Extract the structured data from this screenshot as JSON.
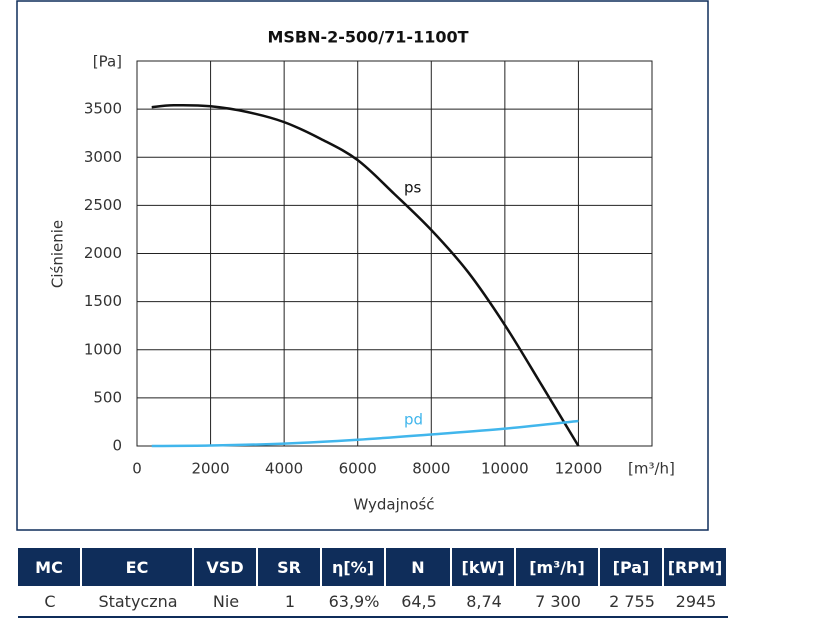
{
  "chart_data": {
    "type": "line",
    "title": "MSBN-2-500/71-1100T",
    "y_label": "Ciśnienie",
    "x_label": "Wydajność",
    "y_unit": "[Pa]",
    "x_unit": "[m³/h]",
    "xlim": [
      0,
      14000
    ],
    "xticks": [
      0,
      2000,
      4000,
      6000,
      8000,
      10000,
      12000
    ],
    "ylim": [
      0,
      4000
    ],
    "yticks": [
      0,
      500,
      1000,
      1500,
      2000,
      2500,
      3000,
      3500
    ],
    "grid": true,
    "series": [
      {
        "name": "ps",
        "color": "#111111",
        "x": [
          400,
          1000,
          2000,
          3000,
          4000,
          5000,
          6000,
          7000,
          8000,
          9000,
          10000,
          11000,
          12000
        ],
        "values": [
          3520,
          3540,
          3530,
          3470,
          3365,
          3190,
          2970,
          2617,
          2244,
          1807,
          1257,
          633,
          0
        ]
      },
      {
        "name": "pd",
        "color": "#41b6ec",
        "x": [
          400,
          2000,
          4000,
          6000,
          8000,
          10000,
          12000
        ],
        "values": [
          0,
          5,
          25,
          65,
          120,
          180,
          260
        ]
      }
    ]
  },
  "table": {
    "header": [
      "MC",
      "EC",
      "VSD",
      "SR",
      "η[%]",
      "N",
      "[kW]",
      "[m³/h]",
      "[Pa]",
      "[RPM]"
    ],
    "rows": [
      [
        "C",
        "Statyczna",
        "Nie",
        "1",
        "63,9%",
        "64,5",
        "8,74",
        "7 300",
        "2 755",
        "2945"
      ]
    ]
  }
}
